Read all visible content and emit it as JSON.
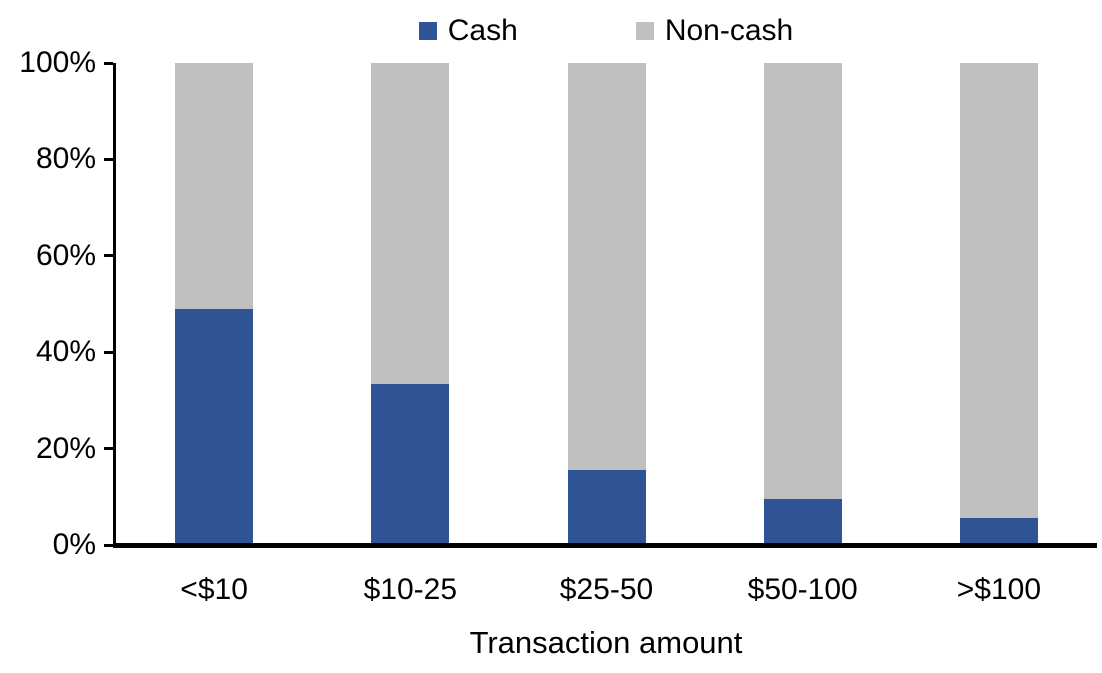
{
  "chart_data": {
    "type": "bar",
    "subtype": "stacked-100",
    "categories": [
      "<$10",
      "$10-25",
      "$25-50",
      "$50-100",
      ">$100"
    ],
    "series": [
      {
        "name": "Cash",
        "color": "#2F5496",
        "values": [
          49,
          33.5,
          15.5,
          9.5,
          5.5
        ]
      },
      {
        "name": "Non-cash",
        "color": "#BFBFBF",
        "values": [
          51,
          66.5,
          84.5,
          90.5,
          94.5
        ]
      }
    ],
    "title": "",
    "xlabel": "Transaction amount",
    "ylabel": "",
    "ylim": [
      0,
      100
    ],
    "ytick_step": 20,
    "ytick_labels": [
      "0%",
      "20%",
      "40%",
      "60%",
      "80%",
      "100%"
    ],
    "legend_position": "top",
    "grid": false,
    "axis_color": "#000000",
    "background_color": "#FFFFFF"
  }
}
